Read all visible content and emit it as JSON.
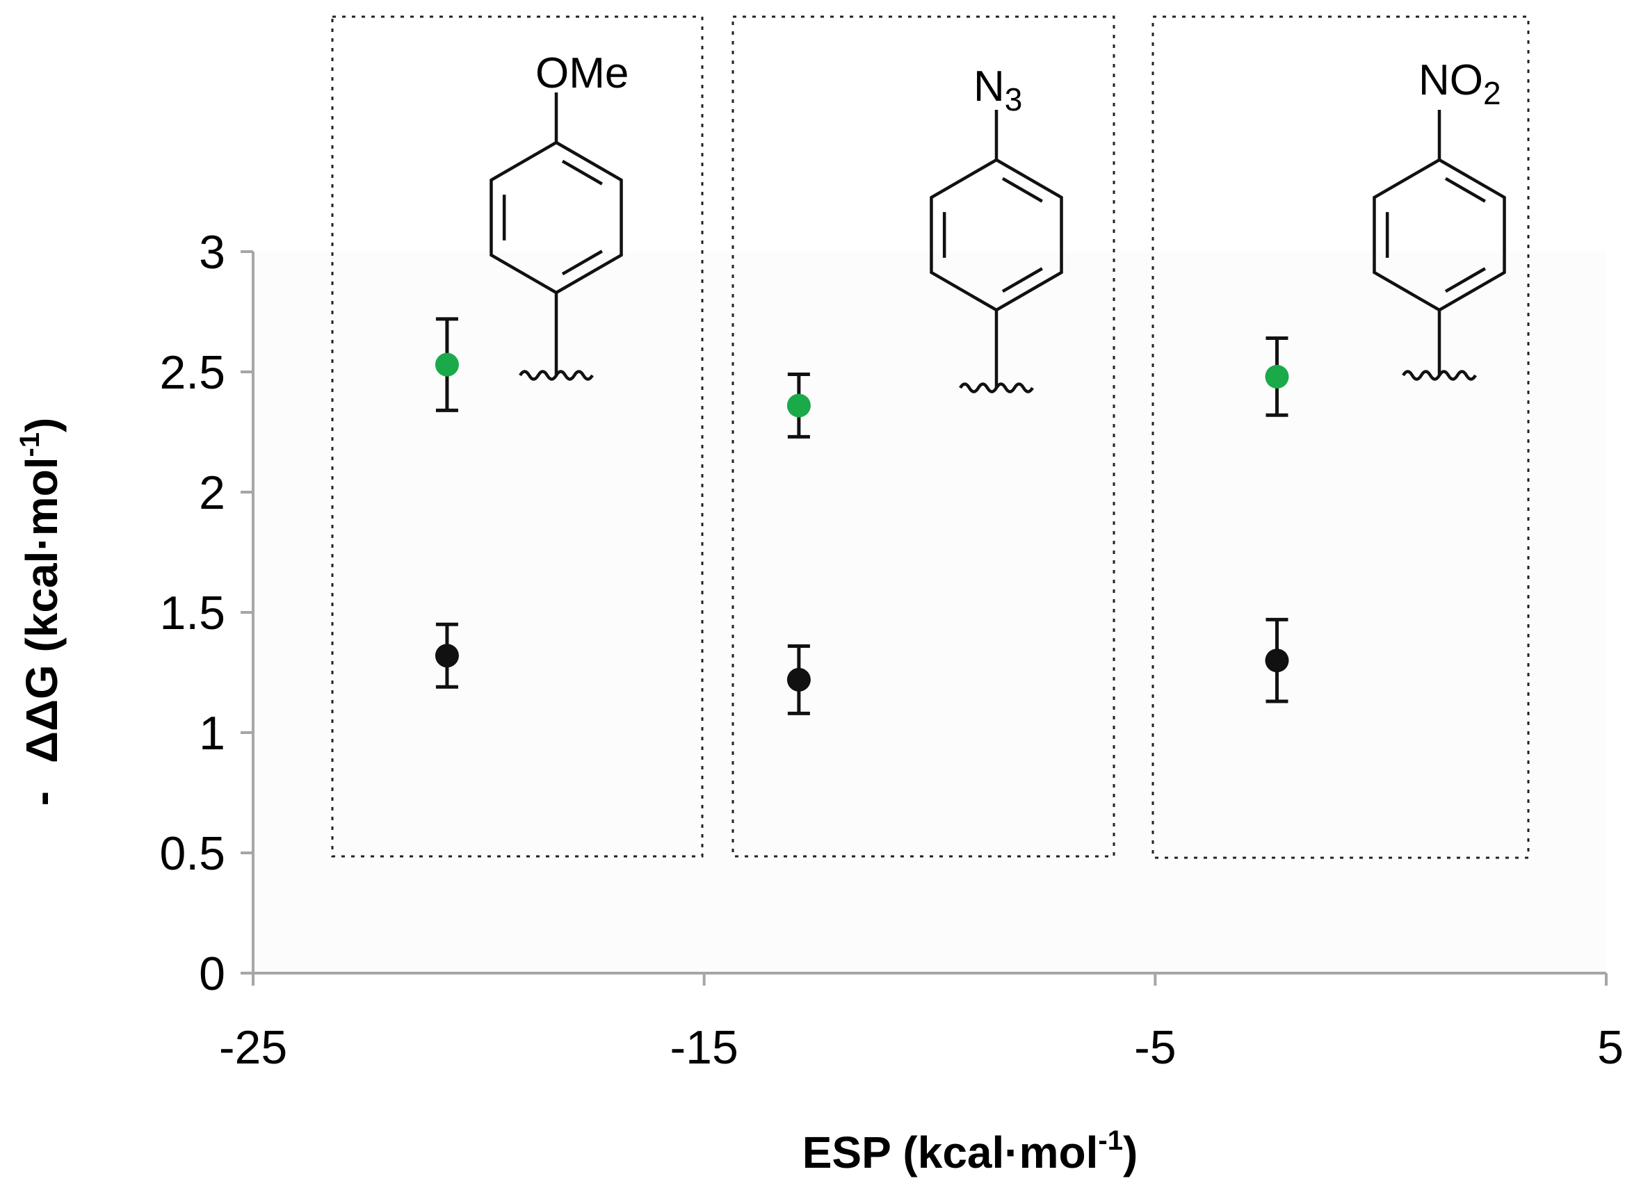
{
  "chart_data": {
    "type": "scatter",
    "title": "",
    "xlabel": "ESP (kcal·mol",
    "xlabel_sup": "-1",
    "xlabel_close": ")",
    "ylabel_prefix": "-",
    "ylabel": "ΔΔG  (kcal·mol",
    "ylabel_sup": "-1",
    "ylabel_close": ")",
    "xlim": [
      -25,
      5
    ],
    "ylim": [
      0,
      3
    ],
    "x_ticks": [
      "-25",
      "-15",
      "-5",
      "5"
    ],
    "y_ticks": [
      "0",
      "0.5",
      "1",
      "1.5",
      "2",
      "2.5",
      "3"
    ],
    "grid": false,
    "series": [
      {
        "color": "#1aaa4a",
        "points": [
          {
            "x": -20.7,
            "y": 2.53,
            "err_low": 2.34,
            "err_high": 2.72
          },
          {
            "x": -12.9,
            "y": 2.36,
            "err_low": 2.23,
            "err_high": 2.49
          },
          {
            "x": -2.3,
            "y": 2.48,
            "err_low": 2.32,
            "err_high": 2.64
          }
        ]
      },
      {
        "color": "#111111",
        "points": [
          {
            "x": -20.7,
            "y": 1.32,
            "err_low": 1.19,
            "err_high": 1.45
          },
          {
            "x": -12.9,
            "y": 1.22,
            "err_low": 1.08,
            "err_high": 1.36
          },
          {
            "x": -2.3,
            "y": 1.3,
            "err_low": 1.13,
            "err_high": 1.47
          }
        ]
      }
    ],
    "annotations": [
      {
        "label": "OMe",
        "sub": ""
      },
      {
        "label": "N",
        "sub": "3"
      },
      {
        "label": "NO",
        "sub": "2"
      }
    ]
  }
}
